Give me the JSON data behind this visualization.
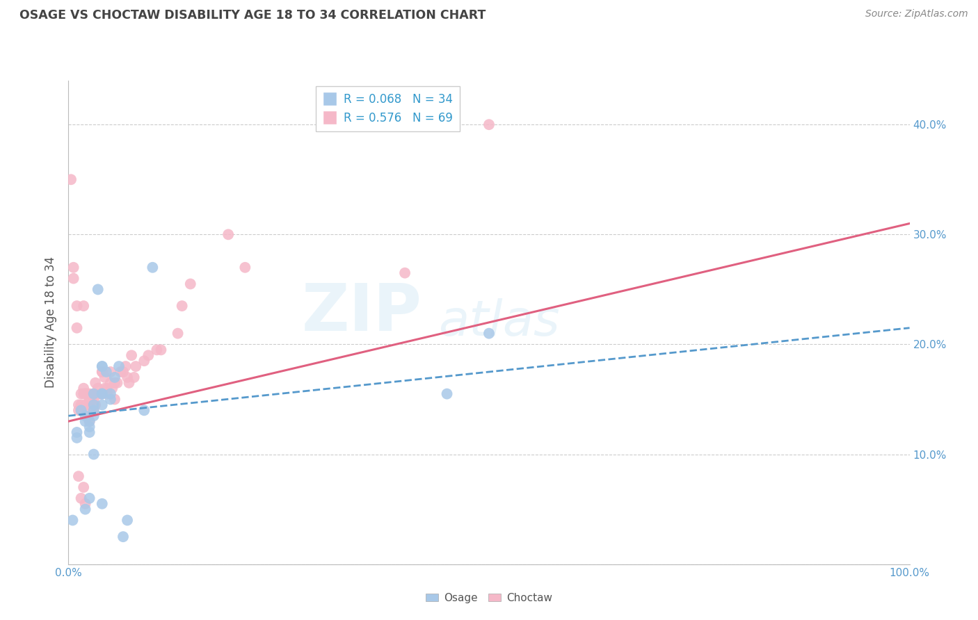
{
  "title": "OSAGE VS CHOCTAW DISABILITY AGE 18 TO 34 CORRELATION CHART",
  "source": "Source: ZipAtlas.com",
  "ylabel": "Disability Age 18 to 34",
  "xlim": [
    0,
    1.0
  ],
  "ylim": [
    0,
    0.44
  ],
  "xtick_positions": [
    0.0,
    1.0
  ],
  "xticklabels": [
    "0.0%",
    "100.0%"
  ],
  "ytick_positions": [
    0.0,
    0.1,
    0.2,
    0.3,
    0.4
  ],
  "right_yticklabels": [
    "",
    "10.0%",
    "20.0%",
    "30.0%",
    "40.0%"
  ],
  "osage_color": "#a8c8e8",
  "choctaw_color": "#f5b8c8",
  "osage_line_color": "#5599cc",
  "choctaw_line_color": "#e06080",
  "legend_osage_label": "R = 0.068   N = 34",
  "legend_choctaw_label": "R = 0.576   N = 69",
  "watermark_top": "ZIP",
  "watermark_bottom": "atlas",
  "background_color": "#ffffff",
  "grid_color": "#cccccc",
  "title_color": "#444444",
  "right_ytick_color": "#5599cc",
  "osage_x": [
    0.005,
    0.01,
    0.01,
    0.015,
    0.02,
    0.02,
    0.02,
    0.025,
    0.025,
    0.025,
    0.025,
    0.03,
    0.03,
    0.03,
    0.03,
    0.03,
    0.035,
    0.04,
    0.04,
    0.04,
    0.04,
    0.04,
    0.04,
    0.045,
    0.05,
    0.05,
    0.055,
    0.06,
    0.065,
    0.07,
    0.09,
    0.1,
    0.45,
    0.5
  ],
  "osage_y": [
    0.04,
    0.115,
    0.12,
    0.14,
    0.135,
    0.13,
    0.05,
    0.13,
    0.125,
    0.12,
    0.06,
    0.14,
    0.135,
    0.145,
    0.155,
    0.1,
    0.25,
    0.155,
    0.145,
    0.055,
    0.155,
    0.18,
    0.18,
    0.175,
    0.155,
    0.15,
    0.17,
    0.18,
    0.025,
    0.04,
    0.14,
    0.27,
    0.155,
    0.21
  ],
  "choctaw_x": [
    0.003,
    0.006,
    0.006,
    0.01,
    0.01,
    0.012,
    0.012,
    0.012,
    0.015,
    0.015,
    0.015,
    0.015,
    0.018,
    0.018,
    0.018,
    0.018,
    0.02,
    0.02,
    0.02,
    0.02,
    0.022,
    0.022,
    0.022,
    0.025,
    0.025,
    0.025,
    0.025,
    0.03,
    0.03,
    0.03,
    0.032,
    0.032,
    0.032,
    0.035,
    0.035,
    0.038,
    0.038,
    0.04,
    0.04,
    0.04,
    0.043,
    0.043,
    0.046,
    0.046,
    0.05,
    0.05,
    0.052,
    0.055,
    0.055,
    0.058,
    0.062,
    0.065,
    0.068,
    0.07,
    0.072,
    0.075,
    0.078,
    0.08,
    0.09,
    0.095,
    0.105,
    0.11,
    0.13,
    0.135,
    0.145,
    0.19,
    0.21,
    0.4,
    0.5
  ],
  "choctaw_y": [
    0.35,
    0.27,
    0.26,
    0.235,
    0.215,
    0.145,
    0.14,
    0.08,
    0.155,
    0.145,
    0.14,
    0.06,
    0.235,
    0.16,
    0.155,
    0.07,
    0.155,
    0.155,
    0.145,
    0.055,
    0.155,
    0.155,
    0.14,
    0.15,
    0.145,
    0.155,
    0.13,
    0.155,
    0.15,
    0.14,
    0.165,
    0.155,
    0.145,
    0.16,
    0.155,
    0.155,
    0.155,
    0.175,
    0.175,
    0.155,
    0.17,
    0.16,
    0.16,
    0.155,
    0.175,
    0.165,
    0.16,
    0.165,
    0.15,
    0.165,
    0.175,
    0.175,
    0.18,
    0.17,
    0.165,
    0.19,
    0.17,
    0.18,
    0.185,
    0.19,
    0.195,
    0.195,
    0.21,
    0.235,
    0.255,
    0.3,
    0.27,
    0.265,
    0.4
  ],
  "choctaw_line_start_x": 0.0,
  "choctaw_line_start_y": 0.13,
  "choctaw_line_end_x": 1.0,
  "choctaw_line_end_y": 0.31,
  "osage_line_start_x": 0.0,
  "osage_line_start_y": 0.135,
  "osage_line_end_x": 1.0,
  "osage_line_end_y": 0.215
}
